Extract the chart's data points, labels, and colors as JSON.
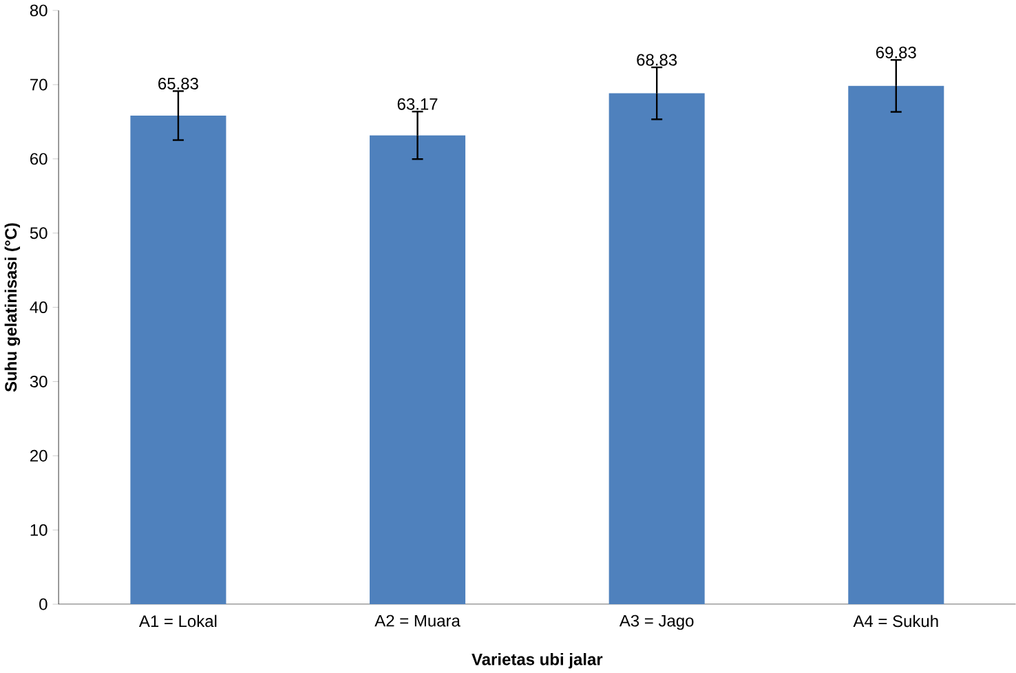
{
  "chart_data": {
    "type": "bar",
    "xlabel": "Varietas ubi jalar",
    "ylabel": "Suhu gelatinisasi (°C)",
    "categories": [
      "A1 = Lokal",
      "A2 = Muara",
      "A3 = Jago",
      "A4 = Sukuh"
    ],
    "values": [
      65.83,
      63.17,
      68.83,
      69.83
    ],
    "errors": [
      3.3,
      3.2,
      3.5,
      3.5
    ],
    "color": "#4f81bd",
    "ylim": [
      0,
      80
    ],
    "yticks": [
      0,
      10,
      20,
      30,
      40,
      50,
      60,
      70,
      80
    ],
    "data_labels": true
  }
}
